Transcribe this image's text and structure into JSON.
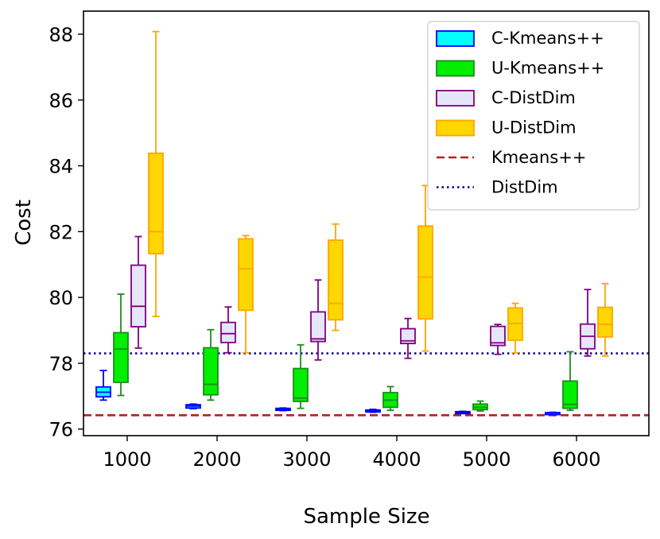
{
  "chart_data": {
    "type": "boxplot",
    "xlabel": "Sample Size",
    "ylabel": "Cost",
    "ylim": [
      75.8,
      88.7
    ],
    "yticks": [
      76,
      78,
      80,
      82,
      84,
      86,
      88
    ],
    "categories": [
      "1000",
      "2000",
      "3000",
      "4000",
      "5000",
      "6000"
    ],
    "legend_position": "top-right",
    "grid": false,
    "series": [
      {
        "name": "C-Kmeans++",
        "fill": "#00ffff",
        "edge": "#0000ff",
        "boxes": [
          {
            "whislo": 76.88,
            "q1": 76.98,
            "med": 77.12,
            "q3": 77.28,
            "whishi": 77.78
          },
          {
            "whislo": 76.62,
            "q1": 76.64,
            "med": 76.7,
            "q3": 76.74,
            "whishi": 76.76
          },
          {
            "whislo": 76.56,
            "q1": 76.57,
            "med": 76.6,
            "q3": 76.63,
            "whishi": 76.64
          },
          {
            "whislo": 76.51,
            "q1": 76.52,
            "med": 76.55,
            "q3": 76.58,
            "whishi": 76.6
          },
          {
            "whislo": 76.48,
            "q1": 76.49,
            "med": 76.51,
            "q3": 76.53,
            "whishi": 76.54
          },
          {
            "whislo": 76.47,
            "q1": 76.48,
            "med": 76.49,
            "q3": 76.5,
            "whishi": 76.51
          }
        ]
      },
      {
        "name": "U-Kmeans++",
        "fill": "#00ee00",
        "edge": "#1e8c1e",
        "boxes": [
          {
            "whislo": 77.02,
            "q1": 77.42,
            "med": 78.43,
            "q3": 78.93,
            "whishi": 80.1
          },
          {
            "whislo": 76.88,
            "q1": 77.04,
            "med": 77.36,
            "q3": 78.47,
            "whishi": 79.02
          },
          {
            "whislo": 76.63,
            "q1": 76.84,
            "med": 76.94,
            "q3": 77.84,
            "whishi": 78.56
          },
          {
            "whislo": 76.57,
            "q1": 76.66,
            "med": 76.88,
            "q3": 77.11,
            "whishi": 77.29
          },
          {
            "whislo": 76.55,
            "q1": 76.59,
            "med": 76.66,
            "q3": 76.76,
            "whishi": 76.85
          },
          {
            "whislo": 76.57,
            "q1": 76.63,
            "med": 76.75,
            "q3": 77.46,
            "whishi": 78.35
          }
        ]
      },
      {
        "name": "C-DistDim",
        "fill": "#e6e6fa",
        "edge": "#800080",
        "boxes": [
          {
            "whislo": 78.46,
            "q1": 79.11,
            "med": 79.73,
            "q3": 80.98,
            "whishi": 81.85
          },
          {
            "whislo": 78.32,
            "q1": 78.63,
            "med": 78.9,
            "q3": 79.24,
            "whishi": 79.71
          },
          {
            "whislo": 78.1,
            "q1": 78.66,
            "med": 78.74,
            "q3": 79.56,
            "whishi": 80.53
          },
          {
            "whislo": 78.15,
            "q1": 78.6,
            "med": 78.68,
            "q3": 79.05,
            "whishi": 79.36
          },
          {
            "whislo": 78.27,
            "q1": 78.54,
            "med": 78.62,
            "q3": 79.12,
            "whishi": 79.18
          },
          {
            "whislo": 78.22,
            "q1": 78.44,
            "med": 78.82,
            "q3": 79.19,
            "whishi": 80.24
          }
        ]
      },
      {
        "name": "U-DistDim",
        "fill": "#ffd700",
        "edge": "#ffa500",
        "boxes": [
          {
            "whislo": 79.42,
            "q1": 81.33,
            "med": 82.0,
            "q3": 84.38,
            "whishi": 88.08
          },
          {
            "whislo": 78.32,
            "q1": 79.61,
            "med": 80.87,
            "q3": 81.78,
            "whishi": 81.88
          },
          {
            "whislo": 79.0,
            "q1": 79.32,
            "med": 79.82,
            "q3": 81.74,
            "whishi": 82.23
          },
          {
            "whislo": 78.37,
            "q1": 79.35,
            "med": 80.62,
            "q3": 82.17,
            "whishi": 83.4
          },
          {
            "whislo": 78.32,
            "q1": 78.7,
            "med": 79.21,
            "q3": 79.68,
            "whishi": 79.82
          },
          {
            "whislo": 78.22,
            "q1": 78.8,
            "med": 79.18,
            "q3": 79.7,
            "whishi": 80.42
          }
        ]
      }
    ],
    "reference_lines": [
      {
        "name": "Kmeans++",
        "value": 76.42,
        "color": "#b22222",
        "style": "dashed"
      },
      {
        "name": "DistDim",
        "value": 78.3,
        "color": "#00008b",
        "style": "dotted"
      }
    ]
  }
}
